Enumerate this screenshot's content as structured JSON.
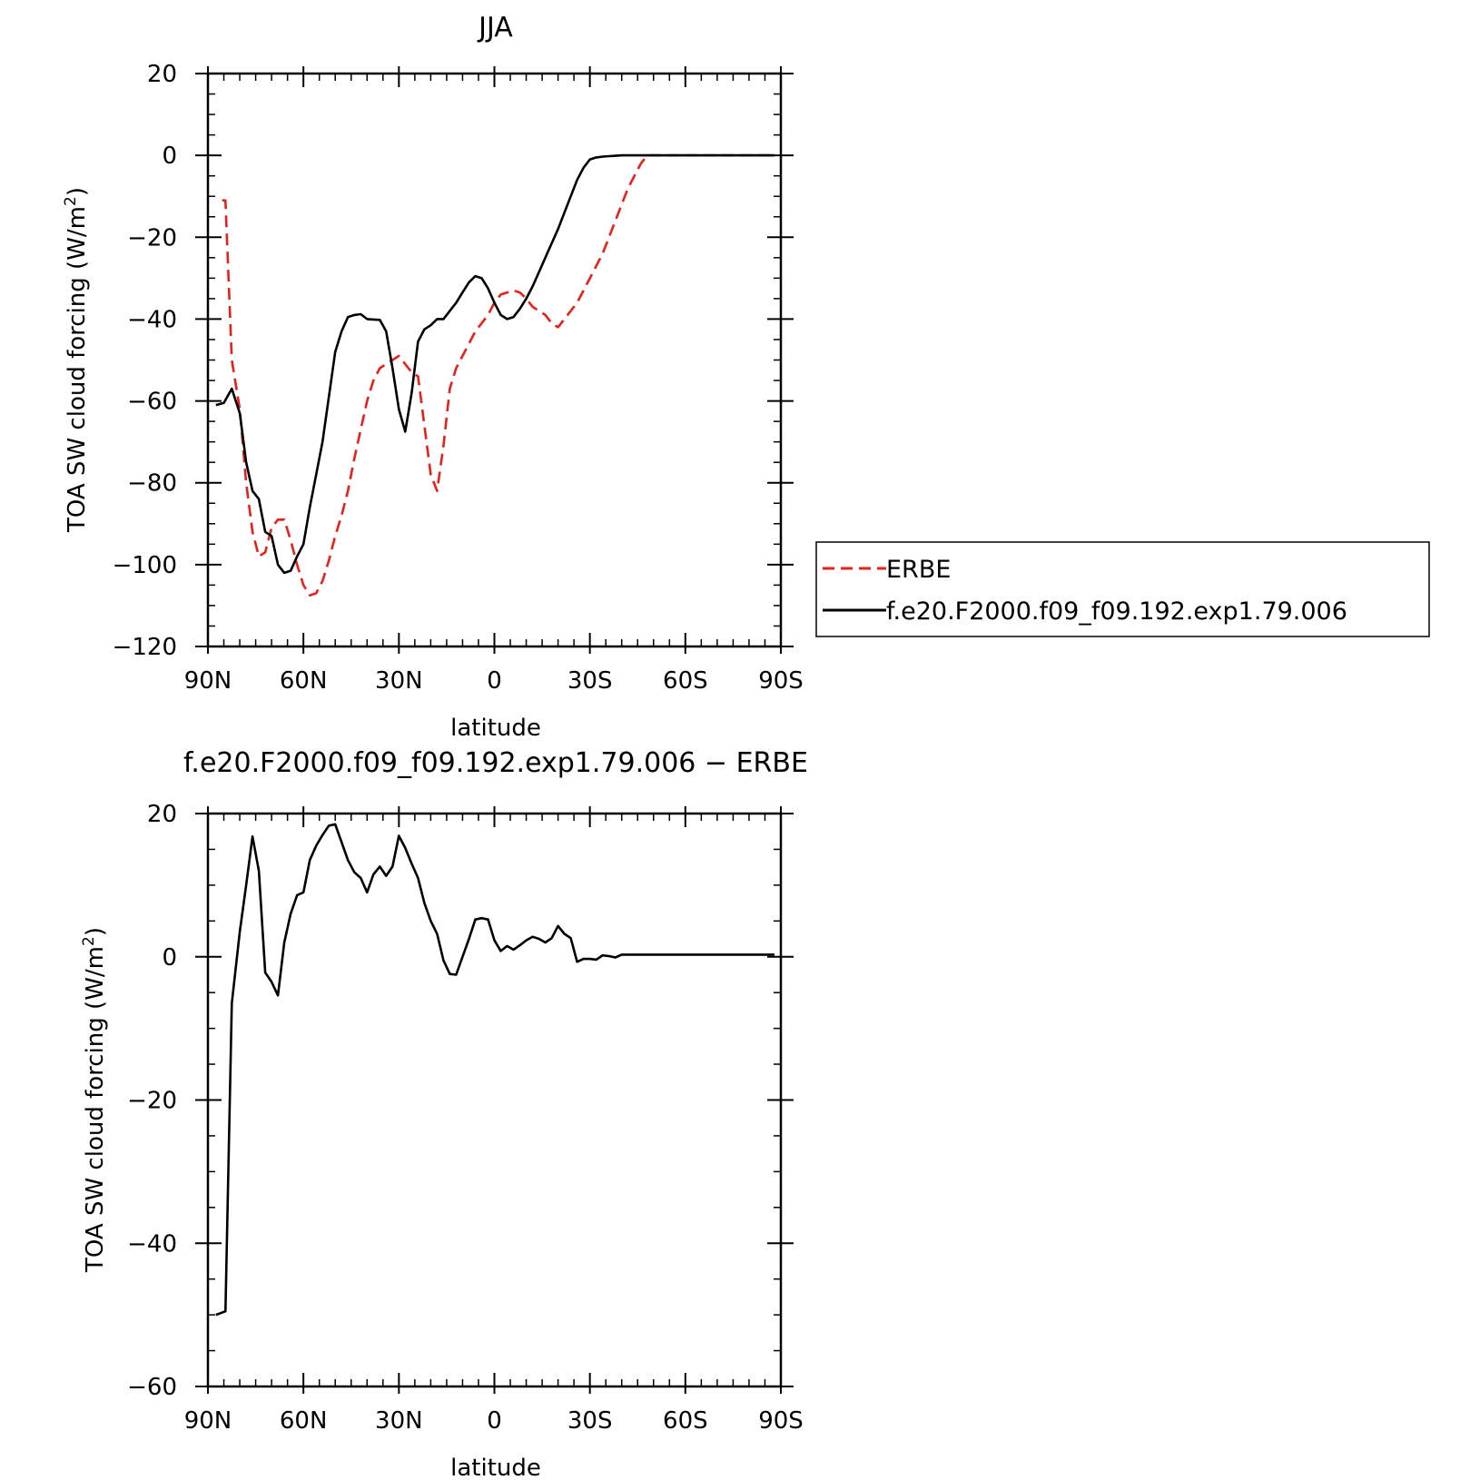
{
  "chart_data": [
    {
      "type": "line",
      "title": "JJA",
      "xlabel": "latitude",
      "ylabel": "TOA SW cloud forcing (W/m",
      "ylabel_sup": "2",
      "ylabel_close": ")",
      "xlim": [
        90,
        -90
      ],
      "ylim": [
        -120,
        20
      ],
      "x_ticks": [
        {
          "value": 90,
          "label": "90N"
        },
        {
          "value": 60,
          "label": "60N"
        },
        {
          "value": 30,
          "label": "30N"
        },
        {
          "value": 0,
          "label": "0"
        },
        {
          "value": -30,
          "label": "30S"
        },
        {
          "value": -60,
          "label": "60S"
        },
        {
          "value": -90,
          "label": "90S"
        }
      ],
      "y_ticks": [
        {
          "value": 20,
          "label": "20"
        },
        {
          "value": 0,
          "label": "0"
        },
        {
          "value": -20,
          "label": "−20"
        },
        {
          "value": -40,
          "label": "−40"
        },
        {
          "value": -60,
          "label": "−60"
        },
        {
          "value": -80,
          "label": "−80"
        },
        {
          "value": -100,
          "label": "−100"
        },
        {
          "value": -120,
          "label": "−120"
        }
      ],
      "grid": false,
      "legend_position": "right",
      "series": [
        {
          "name": "ERBE",
          "color": "#e8201a",
          "dash": "dashed",
          "x": [
            85.5,
            84.5,
            82.5,
            80,
            78,
            76,
            74,
            72,
            70,
            68,
            66,
            64,
            62,
            60,
            58,
            56,
            54,
            52,
            50,
            48,
            46,
            44,
            42,
            40,
            38,
            36,
            34,
            32,
            30,
            28,
            26,
            24,
            22,
            20,
            18,
            16,
            14,
            12,
            10,
            8,
            6,
            4,
            2,
            0,
            -2,
            -4,
            -6,
            -8,
            -10,
            -12,
            -14,
            -16,
            -18,
            -20,
            -22,
            -24,
            -26,
            -28,
            -30,
            -32,
            -34,
            -36,
            -38,
            -40,
            -42,
            -44,
            -46,
            -48,
            -50,
            -52,
            -54,
            -56,
            -58,
            -60,
            -62,
            -64,
            -66,
            -68,
            -70,
            -72,
            -74,
            -76,
            -78,
            -80,
            -82,
            -84,
            -86,
            -88
          ],
          "y": [
            -11,
            -11,
            -50,
            -62,
            -80,
            -92,
            -98,
            -97,
            -91,
            -89,
            -89,
            -94,
            -100,
            -105,
            -107.5,
            -107,
            -104,
            -99,
            -93,
            -88,
            -82,
            -74,
            -67,
            -60,
            -55,
            -52,
            -51,
            -50,
            -49,
            -51,
            -53,
            -54,
            -66,
            -78,
            -82,
            -71,
            -57,
            -52,
            -49,
            -46,
            -43,
            -41,
            -39,
            -36,
            -34,
            -33.5,
            -33,
            -33.5,
            -35,
            -37,
            -38,
            -39,
            -41,
            -42,
            -40,
            -38,
            -36,
            -33,
            -30,
            -27,
            -24,
            -20,
            -16,
            -12,
            -8,
            -5,
            -2,
            0,
            0,
            0,
            0,
            0,
            0,
            0,
            0,
            0,
            0,
            0,
            0,
            0,
            0,
            0,
            0,
            0,
            0,
            0,
            0,
            0
          ]
        },
        {
          "name": "f.e20.F2000.f09_f09.192.exp1.79.006",
          "color": "#000000",
          "dash": "solid",
          "x": [
            87.5,
            85,
            82.5,
            80,
            78,
            76,
            74,
            72,
            70,
            68,
            66,
            64,
            62,
            60,
            58,
            56,
            54,
            52,
            50,
            48,
            46,
            44,
            42,
            40,
            38,
            36,
            34,
            32,
            30,
            28,
            26,
            24,
            22,
            20,
            18,
            16,
            14,
            12,
            10,
            8,
            6,
            4,
            2,
            0,
            -2,
            -4,
            -6,
            -8,
            -10,
            -12,
            -14,
            -16,
            -18,
            -20,
            -22,
            -24,
            -26,
            -28,
            -30,
            -32,
            -34,
            -36,
            -38,
            -40,
            -42,
            -44,
            -46,
            -48,
            -50,
            -52,
            -54,
            -56,
            -58,
            -60,
            -62,
            -64,
            -66,
            -68,
            -70,
            -72,
            -74,
            -76,
            -78,
            -80,
            -82,
            -84,
            -86,
            -88
          ],
          "y": [
            -61,
            -60.5,
            -57,
            -63,
            -75,
            -82,
            -84,
            -92,
            -93,
            -100,
            -102,
            -101.5,
            -98,
            -95,
            -86,
            -78,
            -70,
            -59,
            -48,
            -43,
            -39.5,
            -39,
            -38.8,
            -40,
            -40.1,
            -40.2,
            -43,
            -52,
            -62,
            -67.5,
            -58,
            -45.5,
            -42.5,
            -41.5,
            -40,
            -40,
            -38,
            -36,
            -33.5,
            -31,
            -29.5,
            -30,
            -32.5,
            -36,
            -39,
            -40,
            -39.5,
            -37.5,
            -35,
            -32,
            -28.5,
            -25,
            -21.5,
            -18,
            -14,
            -10,
            -6,
            -3,
            -1,
            -0.5,
            -0.3,
            -0.2,
            -0.1,
            0,
            0,
            0,
            0,
            0,
            0,
            0,
            0,
            0,
            0,
            0,
            0,
            0,
            0,
            0,
            0,
            0,
            0,
            0,
            0,
            0,
            0,
            0,
            0,
            0
          ]
        }
      ]
    },
    {
      "type": "line",
      "title": "f.e20.F2000.f09_f09.192.exp1.79.006 − ERBE",
      "xlabel": "latitude",
      "ylabel": "TOA SW cloud forcing (W/m",
      "ylabel_sup": "2",
      "ylabel_close": ")",
      "xlim": [
        90,
        -90
      ],
      "ylim": [
        -60,
        20
      ],
      "x_ticks": [
        {
          "value": 90,
          "label": "90N"
        },
        {
          "value": 60,
          "label": "60N"
        },
        {
          "value": 30,
          "label": "30N"
        },
        {
          "value": 0,
          "label": "0"
        },
        {
          "value": -30,
          "label": "30S"
        },
        {
          "value": -60,
          "label": "60S"
        },
        {
          "value": -90,
          "label": "90S"
        }
      ],
      "y_ticks": [
        {
          "value": 20,
          "label": "20"
        },
        {
          "value": 0,
          "label": "0"
        },
        {
          "value": -20,
          "label": "−20"
        },
        {
          "value": -40,
          "label": "−40"
        },
        {
          "value": -60,
          "label": "−60"
        }
      ],
      "grid": false,
      "series": [
        {
          "color": "#000000",
          "dash": "solid",
          "x": [
            87.5,
            84.5,
            82.5,
            80,
            78,
            76,
            74,
            72,
            70,
            68,
            66,
            64,
            62,
            60,
            58,
            56,
            54,
            52,
            50,
            48,
            46,
            44,
            42,
            40,
            38,
            36,
            34,
            32,
            30,
            28,
            26,
            24,
            22,
            20,
            18,
            16,
            14,
            12,
            10,
            8,
            6,
            4,
            2,
            0,
            -2,
            -4,
            -6,
            -8,
            -10,
            -12,
            -14,
            -16,
            -18,
            -20,
            -22,
            -24,
            -26,
            -28,
            -30,
            -32,
            -34,
            -36,
            -38,
            -40,
            -42,
            -44,
            -46,
            -48,
            -50,
            -52,
            -54,
            -56,
            -58,
            -60,
            -62,
            -64,
            -66,
            -68,
            -70,
            -72,
            -74,
            -76,
            -78,
            -80,
            -82,
            -84,
            -86,
            -88
          ],
          "y": [
            -50,
            -49.5,
            -6.5,
            3.5,
            10,
            16.8,
            12,
            -2.2,
            -3.5,
            -5.4,
            2,
            6,
            8.6,
            9,
            13.5,
            15.5,
            17,
            18.3,
            18.5,
            16,
            13.5,
            11.8,
            11,
            9,
            11.5,
            12.6,
            11.3,
            12.6,
            16.9,
            15.2,
            13,
            11,
            7.5,
            5,
            3.2,
            -0.5,
            -2.4,
            -2.5,
            0,
            2.5,
            5.2,
            5.4,
            5.2,
            2.3,
            0.8,
            1.5,
            1,
            1.6,
            2.3,
            2.8,
            2.5,
            2,
            2.6,
            4.3,
            3.2,
            2.6,
            -0.7,
            -0.3,
            -0.3,
            -0.4,
            0.2,
            0.1,
            -0.1,
            0.3,
            0.3,
            0.3,
            0.3,
            0.3,
            0.3,
            0.3,
            0.3,
            0.3,
            0.3,
            0.3,
            0.3,
            0.3,
            0.3,
            0.3,
            0.3,
            0.3,
            0.3,
            0.3,
            0.3,
            0.3,
            0.3,
            0.3,
            0.3,
            0.3
          ]
        }
      ]
    }
  ]
}
